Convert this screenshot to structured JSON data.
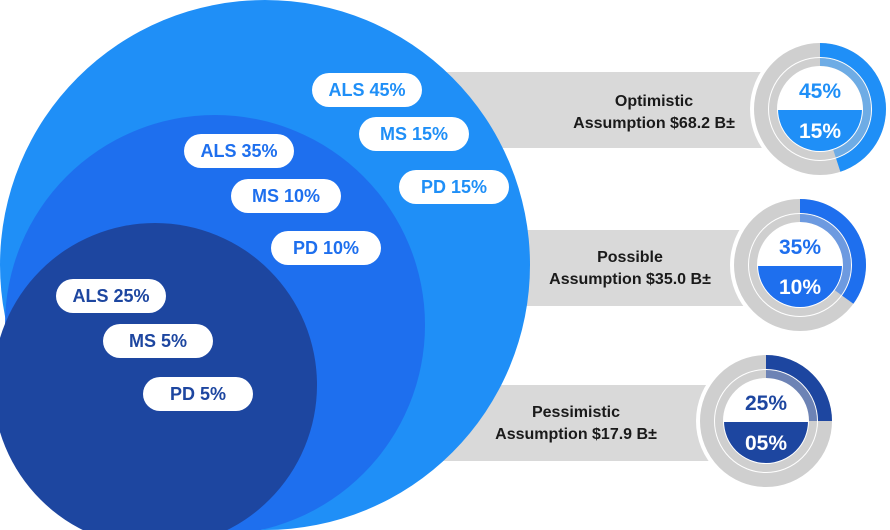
{
  "colors": {
    "outer": "#1f8ff7",
    "middle": "#1e6fee",
    "inner": "#1d46a0",
    "band": "#d9d9d9",
    "ring_track": "#cfcfcf",
    "pill_bg": "#ffffff"
  },
  "pills": {
    "outer": [
      "ALS 45%",
      "MS 15%",
      "PD 15%"
    ],
    "middle": [
      "ALS 35%",
      "MS 10%",
      "PD 10%"
    ],
    "inner": [
      "ALS 25%",
      "MS 5%",
      "PD 5%"
    ]
  },
  "scenarios": [
    {
      "line1": "Optimistic",
      "line2": "Assumption $68.2 B±",
      "top_value": "45%",
      "bottom_value": "15%",
      "outer_pct": 45,
      "inner_pct": 15,
      "color": "#1f8ff7"
    },
    {
      "line1": "Possible",
      "line2": "Assumption $35.0 B±",
      "top_value": "35%",
      "bottom_value": "10%",
      "outer_pct": 35,
      "inner_pct": 10,
      "color": "#1e6fee"
    },
    {
      "line1": "Pessimistic",
      "line2": "Assumption $17.9 B±",
      "top_value": "25%",
      "bottom_value": "05%",
      "outer_pct": 25,
      "inner_pct": 5,
      "color": "#1d46a0"
    }
  ]
}
